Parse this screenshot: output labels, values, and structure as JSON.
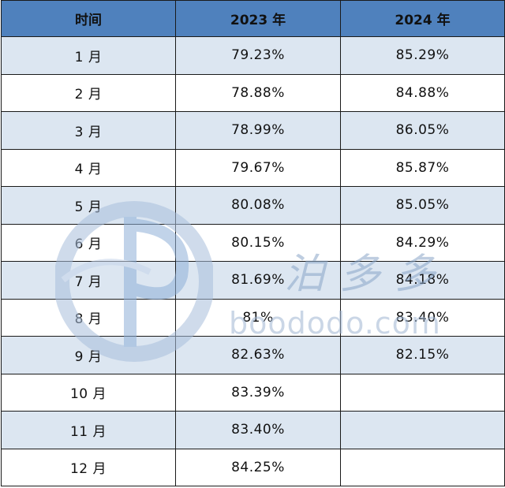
{
  "table": {
    "headers": [
      "时间",
      "2023 年",
      "2024 年"
    ],
    "rows": [
      {
        "month": "1 月",
        "y2023": "79.23%",
        "y2024": "85.29%"
      },
      {
        "month": "2 月",
        "y2023": "78.88%",
        "y2024": "84.88%"
      },
      {
        "month": "3 月",
        "y2023": "78.99%",
        "y2024": "86.05%"
      },
      {
        "month": "4 月",
        "y2023": "79.67%",
        "y2024": "85.87%"
      },
      {
        "month": "5 月",
        "y2023": "80.08%",
        "y2024": "85.05%"
      },
      {
        "month": "6 月",
        "y2023": "80.15%",
        "y2024": "84.29%"
      },
      {
        "month": "7 月",
        "y2023": "81.69%",
        "y2024": "84.18%"
      },
      {
        "month": "8 月",
        "y2023": "81%",
        "y2024": "83.40%"
      },
      {
        "month": "9 月",
        "y2023": "82.63%",
        "y2024": "82.15%"
      },
      {
        "month": "10 月",
        "y2023": "83.39%",
        "y2024": ""
      },
      {
        "month": "11 月",
        "y2023": "83.40%",
        "y2024": ""
      },
      {
        "month": "12 月",
        "y2023": "84.25%",
        "y2024": ""
      }
    ]
  },
  "watermark": {
    "brand_text": "泊多多",
    "url": "boododo.com"
  },
  "colors": {
    "header_bg": "#4f81bd",
    "odd_row_bg": "#dce6f1",
    "even_row_bg": "#ffffff",
    "border": "#1a1a1a"
  }
}
